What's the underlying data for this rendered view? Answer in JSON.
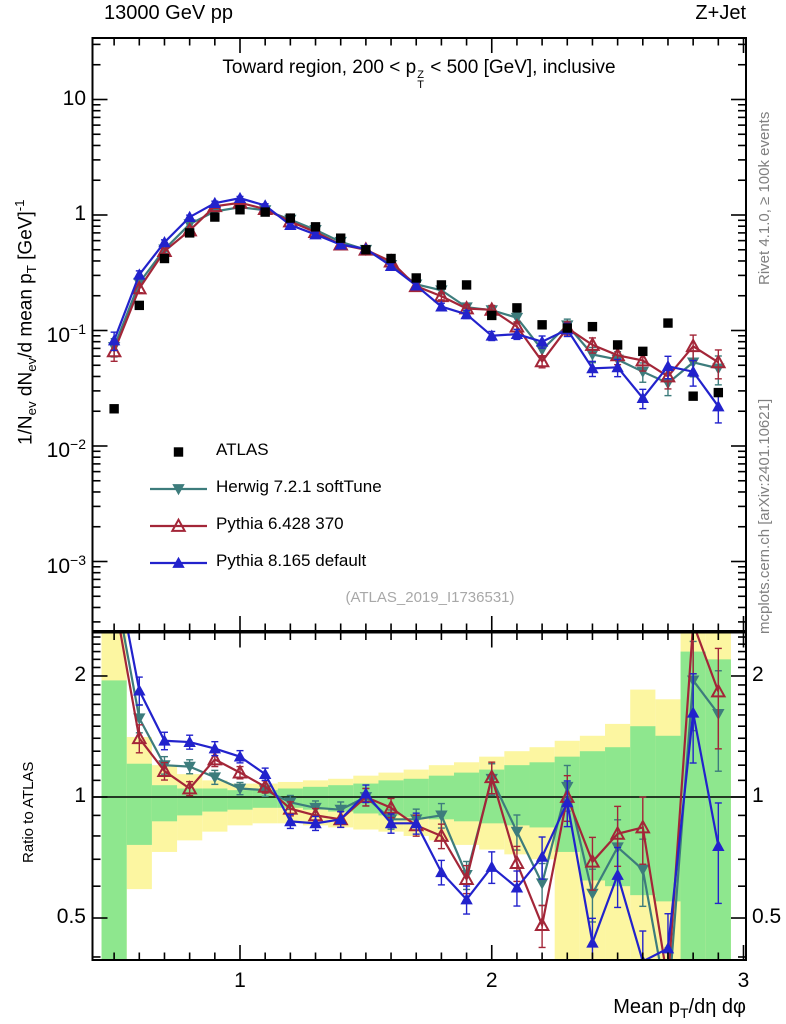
{
  "header": {
    "left_label": "13000 GeV pp",
    "right_label": "Z+Jet"
  },
  "plot_title_parts": [
    {
      "t": "Toward region, 200 < p"
    },
    {
      "supsub": {
        "sup": "Z",
        "sub": "T"
      }
    },
    {
      "t": " < 500 [GeV], inclusive"
    }
  ],
  "watermark": "(ATLAS_2019_I1736531)",
  "side_notes": {
    "rivet": "Rivet 4.1.0, ≥ 100k events",
    "mcplots": "mcplots.cern.ch [arXiv:2401.10621]"
  },
  "y_axis_title_parts": [
    {
      "t": "1/N"
    },
    {
      "sub": "ev"
    },
    {
      "t": " dN"
    },
    {
      "sub": "ev"
    },
    {
      "t": "/d mean p"
    },
    {
      "sub": "T"
    },
    {
      "t": " [GeV]"
    },
    {
      "sup": "-1"
    }
  ],
  "x_axis_title_parts": [
    {
      "t": "Mean p"
    },
    {
      "sub": "T"
    },
    {
      "t": "/dη dφ"
    }
  ],
  "ratio_axis_title": "Ratio to ATLAS",
  "main_y_tick_labels": [
    {
      "value": 10,
      "base": "10",
      "exp": ""
    },
    {
      "value": 1,
      "base": "1",
      "exp": ""
    },
    {
      "value": 0.1,
      "base": "10",
      "exp": "−1"
    },
    {
      "value": 0.01,
      "base": "10",
      "exp": "−2"
    },
    {
      "value": 0.001,
      "base": "10",
      "exp": "−3"
    }
  ],
  "ratio_y_tick_labels": [
    {
      "value": 2,
      "label": "2"
    },
    {
      "value": 1,
      "label": "1"
    },
    {
      "value": 0.5,
      "label": "0.5"
    }
  ],
  "x_tick_labels": [
    {
      "value": 1,
      "label": "1"
    },
    {
      "value": 2,
      "label": "2"
    },
    {
      "value": 3,
      "label": "3"
    }
  ],
  "colors": {
    "frame": "#000000",
    "atlas": "#000000",
    "herwig": "#3d7c7c",
    "pythia6": "#a32638",
    "pythia8": "#2222cc",
    "band_yellow": "#fcf6a1",
    "band_green": "#8ee78e",
    "watermark": "#a8a8a8",
    "side_note": "#808080"
  },
  "chart_data": {
    "type": "line",
    "title": "Toward region, 200 < p_T^Z < 500 [GeV], inclusive",
    "xlabel": "Mean p_T/dη dφ",
    "ylabel": "1/N_ev dN_ev/d mean p_T [GeV]^-1",
    "ratio_ylabel": "Ratio to ATLAS",
    "scales": {
      "x": "linear",
      "main_y": "log",
      "ratio_y": "log"
    },
    "xlim": [
      0.414,
      3.01
    ],
    "main_ylim": [
      0.000255,
      36.2
    ],
    "ratio_ylim": [
      0.393,
      2.57
    ],
    "grid": false,
    "legend_position": "left-middle",
    "bin_width": 0.1,
    "x": [
      0.5,
      0.6,
      0.7,
      0.8,
      0.9,
      1.0,
      1.1,
      1.2,
      1.3,
      1.4,
      1.5,
      1.6,
      1.7,
      1.8,
      1.9,
      2.0,
      2.1,
      2.2,
      2.3,
      2.4,
      2.5,
      2.6,
      2.7,
      2.8,
      2.9
    ],
    "series": [
      {
        "name": "ATLAS",
        "marker": "filled-square",
        "color": "#000000",
        "values": [
          0.021,
          0.165,
          0.42,
          0.7,
          0.96,
          1.11,
          1.06,
          0.94,
          0.79,
          0.63,
          0.5,
          0.42,
          0.285,
          0.248,
          0.248,
          0.135,
          0.157,
          0.112,
          0.105,
          0.108,
          0.075,
          0.066,
          0.116,
          0.027,
          0.029
        ]
      },
      {
        "name": "Herwig 7.2.1 softTune",
        "marker": "filled-triangle-down",
        "color": "#3d7c7c",
        "values": [
          0.072,
          0.259,
          0.504,
          0.833,
          1.075,
          1.166,
          1.102,
          0.912,
          0.743,
          0.586,
          0.5,
          0.37,
          0.251,
          0.223,
          0.159,
          0.15,
          0.129,
          0.068,
          0.111,
          0.062,
          0.056,
          0.044,
          0.035,
          0.053,
          0.047
        ],
        "ratio_to_atlas": [
          3.43,
          1.57,
          1.2,
          1.19,
          1.12,
          1.05,
          1.04,
          0.97,
          0.94,
          0.93,
          1.0,
          0.88,
          0.88,
          0.9,
          0.64,
          1.11,
          0.82,
          0.61,
          1.06,
          0.575,
          0.75,
          0.66,
          0.3,
          1.95,
          1.61
        ]
      },
      {
        "name": "Pythia 6.428 370",
        "marker": "open-triangle-up",
        "color": "#a32638",
        "values": [
          0.066,
          0.231,
          0.487,
          0.735,
          1.19,
          1.277,
          1.124,
          0.879,
          0.711,
          0.554,
          0.5,
          0.395,
          0.242,
          0.198,
          0.155,
          0.151,
          0.108,
          0.054,
          0.105,
          0.075,
          0.061,
          0.055,
          0.04,
          0.073,
          0.053
        ],
        "ratio_to_atlas": [
          3.14,
          1.4,
          1.16,
          1.05,
          1.24,
          1.15,
          1.06,
          0.935,
          0.9,
          0.88,
          1.0,
          0.94,
          0.85,
          0.8,
          0.625,
          1.12,
          0.685,
          0.48,
          1.0,
          0.69,
          0.81,
          0.84,
          0.345,
          2.7,
          1.83
        ]
      },
      {
        "name": "Pythia 8.165 default",
        "marker": "filled-triangle-up",
        "color": "#2222cc",
        "values": [
          0.082,
          0.304,
          0.58,
          0.959,
          1.267,
          1.399,
          1.208,
          0.818,
          0.679,
          0.554,
          0.51,
          0.361,
          0.245,
          0.161,
          0.138,
          0.09,
          0.093,
          0.08,
          0.102,
          0.047,
          0.048,
          0.026,
          0.049,
          0.044,
          0.022
        ],
        "ratio_to_atlas": [
          3.9,
          1.84,
          1.38,
          1.37,
          1.32,
          1.26,
          1.14,
          0.87,
          0.86,
          0.88,
          1.02,
          0.86,
          0.86,
          0.65,
          0.556,
          0.67,
          0.595,
          0.71,
          0.97,
          0.434,
          0.64,
          0.39,
          0.42,
          1.62,
          0.755
        ]
      }
    ],
    "relative_errors": [
      0.18,
      0.08,
      0.05,
      0.04,
      0.04,
      0.035,
      0.035,
      0.04,
      0.04,
      0.045,
      0.05,
      0.055,
      0.06,
      0.07,
      0.08,
      0.09,
      0.1,
      0.12,
      0.13,
      0.15,
      0.17,
      0.19,
      0.22,
      0.25,
      0.28
    ],
    "atlas_uncertainty_bands": {
      "yellow": {
        "lo": [
          0.3,
          0.59,
          0.73,
          0.78,
          0.82,
          0.85,
          0.86,
          0.86,
          0.85,
          0.84,
          0.83,
          0.82,
          0.8,
          0.78,
          0.76,
          0.74,
          0.72,
          0.7,
          0.32,
          0.32,
          0.32,
          0.32,
          0.32,
          0.32,
          0.32
        ],
        "hi": [
          2.6,
          1.41,
          1.2,
          1.14,
          1.1,
          1.08,
          1.08,
          1.09,
          1.1,
          1.11,
          1.13,
          1.15,
          1.17,
          1.2,
          1.22,
          1.26,
          1.3,
          1.33,
          1.38,
          1.42,
          1.52,
          1.85,
          1.75,
          2.6,
          2.6
        ]
      },
      "green": {
        "lo": [
          0.3,
          0.76,
          0.87,
          0.9,
          0.92,
          0.93,
          0.94,
          0.94,
          0.93,
          0.92,
          0.91,
          0.9,
          0.89,
          0.88,
          0.87,
          0.86,
          0.85,
          0.84,
          0.73,
          0.62,
          0.6,
          0.57,
          0.55,
          0.32,
          0.32
        ],
        "hi": [
          1.95,
          1.21,
          1.07,
          1.05,
          1.05,
          1.04,
          1.04,
          1.05,
          1.06,
          1.07,
          1.08,
          1.1,
          1.11,
          1.13,
          1.15,
          1.17,
          1.2,
          1.22,
          1.26,
          1.3,
          1.33,
          1.5,
          1.42,
          2.3,
          2.2
        ]
      }
    }
  }
}
